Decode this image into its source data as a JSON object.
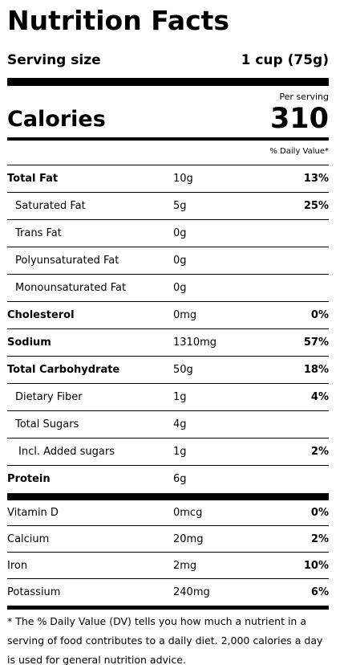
{
  "header": {
    "title": "Nutrition Facts",
    "serving_label": "Serving size",
    "serving_value": "1 cup (75g)",
    "per_serving": "Per serving",
    "calories_label": "Calories",
    "calories_value": "310",
    "dv_header": "% Daily Value*"
  },
  "nutrients": [
    {
      "name": "Total Fat",
      "amount": "10g",
      "dv": "13%",
      "style": "main"
    },
    {
      "name": "Saturated Fat",
      "amount": "5g",
      "dv": "25%",
      "style": "sub"
    },
    {
      "name": "Trans Fat",
      "amount": "0g",
      "style": "sub"
    },
    {
      "name": "Polyunsaturated Fat",
      "amount": "0g",
      "style": "sub"
    },
    {
      "name": "Monounsaturated Fat",
      "amount": "0g",
      "style": "sub"
    },
    {
      "name": "Cholesterol",
      "amount": "0mg",
      "dv": "0%",
      "style": "main"
    },
    {
      "name": "Sodium",
      "amount": "1310mg",
      "dv": "57%",
      "style": "main"
    },
    {
      "name": "Total Carbohydrate",
      "amount": "50g",
      "dv": "18%",
      "style": "main"
    },
    {
      "name": "Dietary Fiber",
      "amount": "1g",
      "dv": "4%",
      "style": "sub"
    },
    {
      "name": "Total Sugars",
      "amount": "4g",
      "style": "sub"
    },
    {
      "name": "Incl. Added sugars",
      "amount": "1g",
      "dv": "2%",
      "style": "subsub"
    },
    {
      "name": "Protein",
      "amount": "6g",
      "style": "main"
    }
  ],
  "vitamins": [
    {
      "name": "Vitamin D",
      "amount": "0mcg",
      "dv": "0%"
    },
    {
      "name": "Calcium",
      "amount": "20mg",
      "dv": "2%"
    },
    {
      "name": "Iron",
      "amount": "2mg",
      "dv": "10%"
    },
    {
      "name": "Potassium",
      "amount": "240mg",
      "dv": "6%"
    }
  ],
  "footnote": "* The % Daily Value (DV) tells you how much a nutrient in a serving of food contributes to a daily diet. 2,000 calories a day is used for general nutrition advice."
}
